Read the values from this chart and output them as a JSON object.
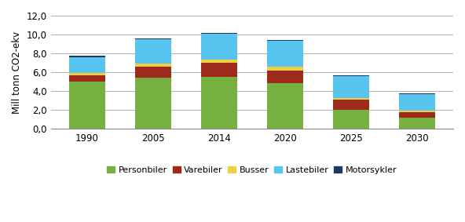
{
  "categories": [
    "1990",
    "2005",
    "2014",
    "2020",
    "2025",
    "2030"
  ],
  "personbiler": [
    5.0,
    5.4,
    5.5,
    4.8,
    2.0,
    1.2
  ],
  "varebiler": [
    0.7,
    1.2,
    1.5,
    1.4,
    1.1,
    0.6
  ],
  "busser": [
    0.2,
    0.3,
    0.3,
    0.4,
    0.2,
    0.15
  ],
  "lastebiler": [
    1.7,
    2.6,
    2.8,
    2.7,
    2.3,
    1.7
  ],
  "motorsykler": [
    0.15,
    0.1,
    0.1,
    0.1,
    0.05,
    0.15
  ],
  "colors": {
    "personbiler": "#76b041",
    "varebiler": "#9e2a1c",
    "busser": "#f0d040",
    "lastebiler": "#57c5ef",
    "motorsykler": "#1f3864"
  },
  "ylabel": "Mill tonn CO2-ekv",
  "ylim": [
    0,
    12
  ],
  "yticks": [
    0.0,
    2.0,
    4.0,
    6.0,
    8.0,
    10.0,
    12.0
  ],
  "ytick_labels": [
    "0,0",
    "2,0",
    "4,0",
    "6,0",
    "8,0",
    "10,0",
    "12,0"
  ],
  "legend_labels": [
    "Personbiler",
    "Varebiler",
    "Busser",
    "Lastebiler",
    "Motorsykler"
  ],
  "background_color": "#ffffff"
}
